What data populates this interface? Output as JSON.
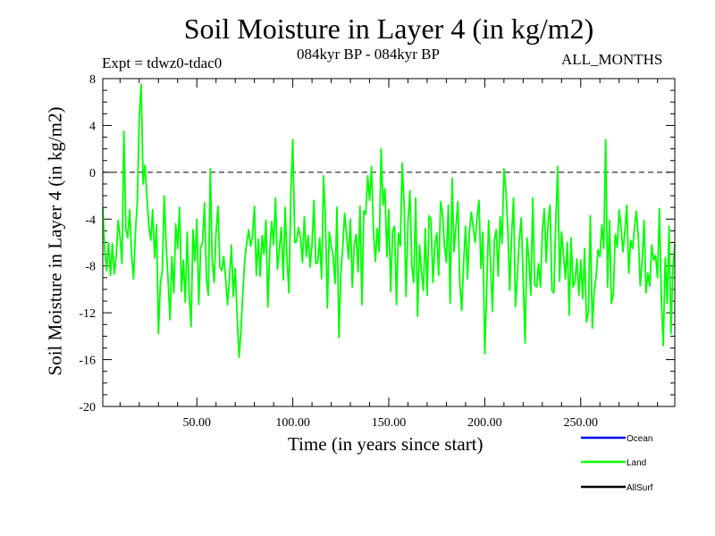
{
  "title": "Soil Moisture in Layer 4 (in kg/m2)",
  "subtitle": "084kyr BP - 084kyr BP",
  "expt": "Expt = tdwz0-tdac0",
  "months": "ALL_MONTHS",
  "chart_data": {
    "type": "line",
    "title": "Soil Moisture in Layer 4 (in kg/m2)",
    "xlabel": "Time (in years since start)",
    "ylabel": "Soil Moisture in Layer 4 (in kg/m2)",
    "xlim": [
      1,
      299
    ],
    "ylim": [
      -20,
      8
    ],
    "x_ticks": [
      50,
      100,
      150,
      200,
      250
    ],
    "x_tick_labels": [
      "50.00",
      "100.00",
      "150.00",
      "200.00",
      "250.00"
    ],
    "y_ticks": [
      8,
      4,
      0,
      -4,
      -8,
      -12,
      -16,
      -20
    ],
    "y_tick_labels": [
      "8",
      "4",
      "0",
      "-4",
      "-8",
      "-12",
      "-16",
      "-20"
    ],
    "reference_line": 0,
    "legend": [
      {
        "name": "Ocean",
        "color": "#0000ff"
      },
      {
        "name": "Land",
        "color": "#00ff00"
      },
      {
        "name": "AllSurf",
        "color": "#000000"
      }
    ],
    "series": [
      {
        "name": "Land",
        "color": "#00ff00",
        "x_start": 1,
        "x_step": 1,
        "values": [
          -3.0,
          -6.5,
          -8.4,
          -6.0,
          -8.8,
          -6.1,
          -8.7,
          -7.2,
          -4.1,
          -5.5,
          -7.8,
          3.5,
          -4.8,
          -5.6,
          -3.2,
          -7.0,
          -9.1,
          -5.2,
          -2.4,
          4.7,
          7.5,
          -1.0,
          0.6,
          -2.1,
          -4.6,
          -5.8,
          -3.2,
          -7.3,
          -4.5,
          -13.8,
          -9.5,
          -8.4,
          -2.0,
          -6.2,
          -9.1,
          -12.6,
          -7.2,
          -10.3,
          -4.4,
          -6.5,
          -3.0,
          -10.2,
          -7.5,
          -11.1,
          -5.1,
          -10.2,
          -13.2,
          -4.9,
          -7.6,
          -4.0,
          -11.3,
          -6.5,
          -5.9,
          -2.6,
          -9.2,
          -10.5,
          0.3,
          -7.5,
          -9.4,
          -5.2,
          -2.9,
          -8.1,
          -8.4,
          -7.2,
          -9.0,
          -11.3,
          -9.1,
          -6.2,
          -10.6,
          -8.2,
          -12.3,
          -15.8,
          -13.5,
          -10.2,
          -7.4,
          -6.0,
          -4.9,
          -6.3,
          -5.5,
          -2.9,
          -8.8,
          -5.7,
          -8.9,
          -5.4,
          -7.0,
          -4.1,
          -11.5,
          -6.8,
          -4.2,
          -6.2,
          -2.2,
          -8.3,
          -6.5,
          -4.7,
          -9.2,
          -3.0,
          -7.5,
          -10.3,
          -1.6,
          2.8,
          -6.0,
          -5.9,
          -4.7,
          -5.6,
          -7.7,
          -3.8,
          -7.2,
          -5.4,
          -8.1,
          -6.2,
          -2.4,
          -7.8,
          -7.7,
          -5.6,
          -9.1,
          -0.3,
          -4.0,
          -11.6,
          -5.1,
          -6.3,
          -7.1,
          -9.5,
          -3.0,
          -14.1,
          -8.8,
          -6.4,
          -3.5,
          -5.4,
          -7.4,
          -4.0,
          -9.8,
          -6.2,
          -5.3,
          -8.5,
          -2.9,
          -11.3,
          -3.3,
          -3.6,
          -0.3,
          -2.4,
          0.5,
          -5.0,
          -7.6,
          -4.8,
          -6.8,
          2.0,
          -2.8,
          -1.4,
          -7.2,
          -3.2,
          -10.2,
          -5.1,
          -4.6,
          -11.3,
          -5.2,
          -6.3,
          0.8,
          -2.9,
          -10.6,
          -4.3,
          -1.6,
          -8.0,
          -9.4,
          -2.2,
          -12.3,
          -6.2,
          -8.4,
          -10.1,
          -4.8,
          -10.5,
          -3.7,
          -4.0,
          -9.4,
          -6.2,
          -5.2,
          -8.8,
          -2.5,
          -3.5,
          -6.3,
          -7.7,
          -2.8,
          -11.2,
          -0.5,
          -6.8,
          -4.6,
          -2.5,
          -9.5,
          -11.8,
          -7.6,
          -4.6,
          -9.1,
          -5.1,
          -3.4,
          -4.7,
          -6.0,
          -3.8,
          -2.4,
          -8.2,
          -5.1,
          -15.5,
          -10.2,
          -4.1,
          -7.7,
          -11.9,
          -5.8,
          -4.9,
          -8.9,
          -3.8,
          -6.1,
          0.3,
          -1.5,
          -4.8,
          -10.1,
          -5.4,
          -2.2,
          -11.5,
          -8.8,
          -5.8,
          -3.9,
          -9.0,
          -14.6,
          -5.6,
          -7.5,
          -10.5,
          -2.2,
          -9.6,
          -9.8,
          -7.8,
          -9.8,
          -5.1,
          -3.1,
          -7.7,
          -4.2,
          -2.8,
          -10.1,
          -10.3,
          -4.4,
          0.5,
          -9.3,
          -5.1,
          -6.9,
          -9.1,
          -6.0,
          -12.2,
          -5.6,
          -9.8,
          -9.3,
          -7.4,
          -10.5,
          -7.5,
          -10.8,
          -6.5,
          -12.8,
          -11.9,
          -3.7,
          -13.3,
          -10.2,
          -9.0,
          -6.6,
          -7.2,
          -4.5,
          -6.5,
          2.8,
          -9.8,
          -4.1,
          -11.2,
          -10.4,
          -5.3,
          -6.4,
          -3.2,
          -4.7,
          -6.8,
          -5.0,
          -2.8,
          -8.6,
          -5.8,
          -6.5,
          -4.8,
          -3.3,
          -5.5,
          -9.7,
          -7.6,
          -4.1,
          -10.3,
          -8.6,
          -9.7,
          -6.2,
          -7.5,
          -7.1,
          -9.0,
          -3.1,
          -10.9,
          -14.8,
          -7.3,
          -11.2,
          -4.6,
          -13.8,
          -8.2,
          -6.1
        ]
      }
    ]
  }
}
